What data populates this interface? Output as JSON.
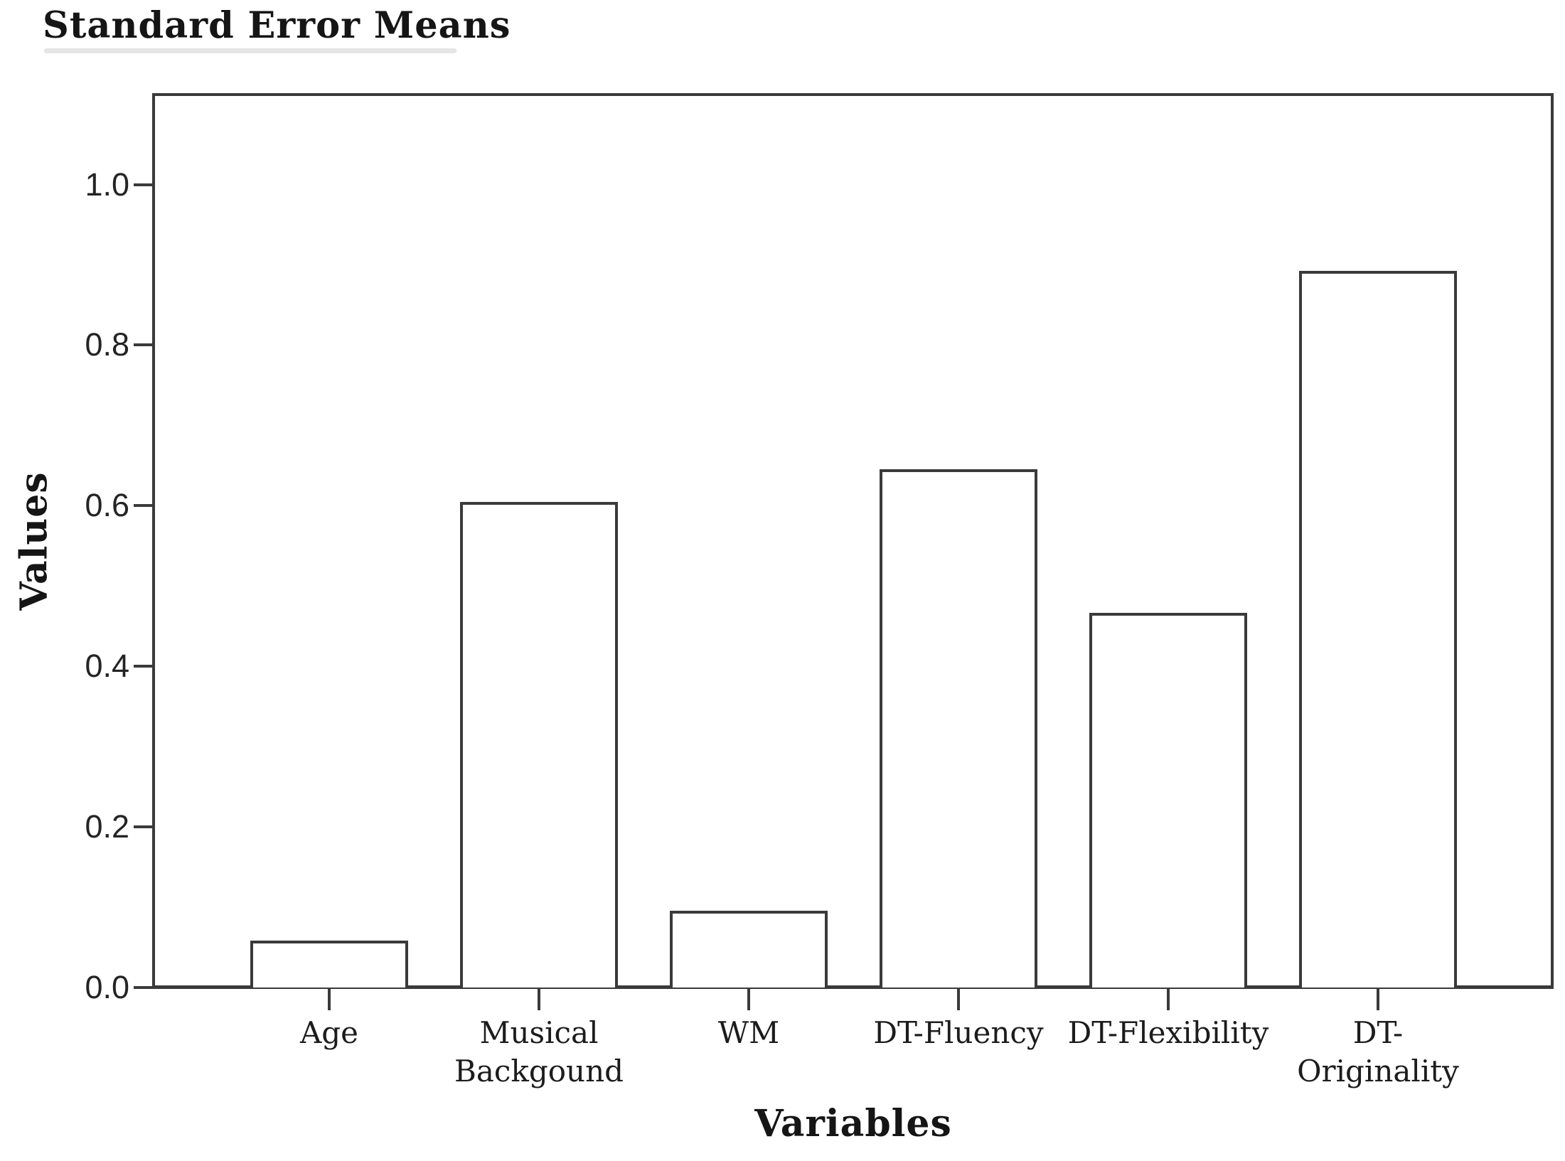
{
  "chart_data": {
    "type": "bar",
    "title": "Standard Error Means",
    "xlabel": "Variables",
    "ylabel": "Values",
    "categories": [
      "Age",
      "Musical Backgound",
      "WM",
      "DT-Fluency",
      "DT-Flexibility",
      "DT-Originality"
    ],
    "category_display_lines": [
      [
        "Age"
      ],
      [
        "Musical",
        "Backgound"
      ],
      [
        "WM"
      ],
      [
        "DT-Fluency"
      ],
      [
        "DT-Flexibility"
      ],
      [
        "DT-",
        "Originality"
      ]
    ],
    "values": [
      0.058,
      0.605,
      0.096,
      0.645,
      0.467,
      0.892
    ],
    "yticks": [
      {
        "value": 0.0,
        "label": "0.0"
      },
      {
        "value": 0.2,
        "label": "0.2"
      },
      {
        "value": 0.4,
        "label": "0.4"
      },
      {
        "value": 0.6,
        "label": "0.6"
      },
      {
        "value": 0.8,
        "label": "0.8"
      },
      {
        "value": 1.0,
        "label": "1.0"
      }
    ],
    "ylim": [
      0,
      1.112
    ],
    "grid": false,
    "legend": "none",
    "bar_fill_color": "#ffffff",
    "line_color": "#3a3a3a",
    "text_color": "#1a1a1a",
    "background_color": "#ffffff"
  }
}
